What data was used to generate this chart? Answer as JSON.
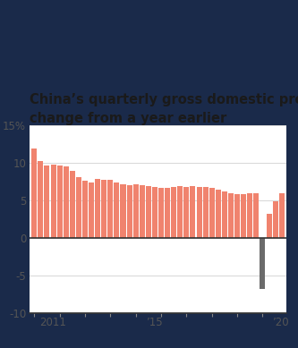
{
  "title_line1": "China’s quarterly gross domestic product,",
  "title_line2": "change from a year earlier",
  "values": [
    11.9,
    10.3,
    9.6,
    9.8,
    9.7,
    9.5,
    8.9,
    8.1,
    7.6,
    7.4,
    7.9,
    7.7,
    7.7,
    7.4,
    7.2,
    7.0,
    7.1,
    7.0,
    6.9,
    6.8,
    6.7,
    6.7,
    6.8,
    6.9,
    6.8,
    6.9,
    6.8,
    6.8,
    6.7,
    6.4,
    6.2,
    6.0,
    5.8,
    5.9,
    6.0,
    6.0,
    -6.8,
    3.2,
    4.9,
    6.0
  ],
  "bar_color_positive": "#f0836e",
  "bar_color_negative": "#6b6b6b",
  "background_color": "#ffffff",
  "outer_border_color": "#1a2a4a",
  "ylim_min": -10,
  "ylim_max": 15,
  "yticks": [
    -10,
    -5,
    0,
    5,
    10,
    15
  ],
  "ytick_labels": [
    "-10",
    "-5",
    "0",
    "5",
    "10",
    "15%"
  ],
  "grid_color": "#d0d0d0",
  "title_fontsize": 10.5,
  "tick_fontsize": 8.5,
  "title_color": "#1a1a1a",
  "axis_label_color": "#555555"
}
